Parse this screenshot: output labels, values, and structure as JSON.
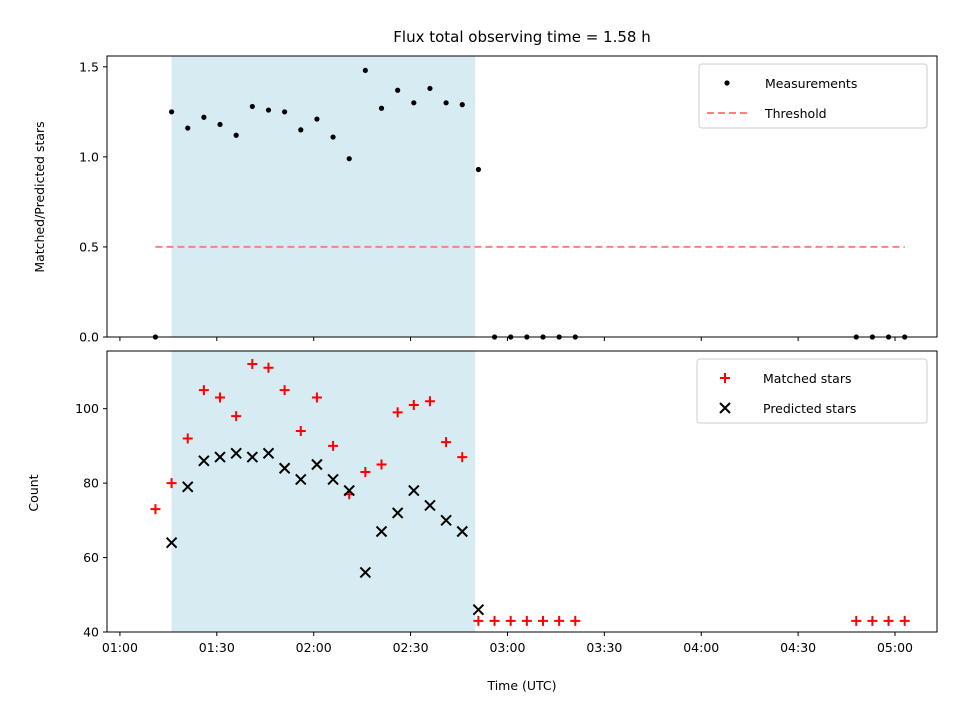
{
  "chart_data": [
    {
      "type": "scatter",
      "title": "Flux total observing time = 1.58 h",
      "xlabel": "",
      "ylabel": "Matched/Predicted stars",
      "ylim": [
        0,
        1.56
      ],
      "xlim": [
        "00:56",
        "05:13"
      ],
      "yticks": [
        "0.0",
        "0.5",
        "1.0",
        "1.5"
      ],
      "shaded_region": {
        "from": "01:16",
        "to": "02:50",
        "color": "#add8e6"
      },
      "legend": {
        "placement": "top-right",
        "entries": [
          "Measurements",
          "Threshold"
        ]
      },
      "series": [
        {
          "name": "Measurements",
          "marker": "dot",
          "color": "#000000",
          "points": [
            [
              "01:11",
              0.0
            ],
            [
              "01:16",
              1.25
            ],
            [
              "01:21",
              1.16
            ],
            [
              "01:26",
              1.22
            ],
            [
              "01:31",
              1.18
            ],
            [
              "01:36",
              1.12
            ],
            [
              "01:41",
              1.28
            ],
            [
              "01:46",
              1.26
            ],
            [
              "01:51",
              1.25
            ],
            [
              "01:56",
              1.15
            ],
            [
              "02:01",
              1.21
            ],
            [
              "02:06",
              1.11
            ],
            [
              "02:11",
              0.99
            ],
            [
              "02:16",
              1.48
            ],
            [
              "02:21",
              1.27
            ],
            [
              "02:26",
              1.37
            ],
            [
              "02:31",
              1.3
            ],
            [
              "02:36",
              1.38
            ],
            [
              "02:41",
              1.3
            ],
            [
              "02:46",
              1.29
            ],
            [
              "02:51",
              0.93
            ],
            [
              "02:56",
              0.0
            ],
            [
              "03:01",
              0.0
            ],
            [
              "03:06",
              0.0
            ],
            [
              "03:11",
              0.0
            ],
            [
              "03:16",
              0.0
            ],
            [
              "03:21",
              0.0
            ],
            [
              "04:48",
              0.0
            ],
            [
              "04:53",
              0.0
            ],
            [
              "04:58",
              0.0
            ],
            [
              "05:03",
              0.0
            ]
          ]
        },
        {
          "name": "Threshold",
          "marker": "dashed-line",
          "color": "#ff7f7f",
          "points": [
            [
              "01:11",
              0.5
            ],
            [
              "05:03",
              0.5
            ]
          ]
        }
      ]
    },
    {
      "type": "scatter",
      "title": "",
      "xlabel": "Time (UTC)",
      "ylabel": "Count",
      "ylim": [
        40,
        115.5
      ],
      "xlim": [
        "00:56",
        "05:13"
      ],
      "yticks": [
        "40",
        "60",
        "80",
        "100"
      ],
      "xticks": [
        "01:00",
        "01:30",
        "02:00",
        "02:30",
        "03:00",
        "03:30",
        "04:00",
        "04:30",
        "05:00"
      ],
      "shaded_region": {
        "from": "01:16",
        "to": "02:50",
        "color": "#add8e6"
      },
      "legend": {
        "placement": "top-right",
        "entries": [
          "Matched stars",
          "Predicted stars"
        ]
      },
      "series": [
        {
          "name": "Matched stars",
          "marker": "plus",
          "color": "#ff0000",
          "points": [
            [
              "01:11",
              73
            ],
            [
              "01:16",
              80
            ],
            [
              "01:21",
              92
            ],
            [
              "01:26",
              105
            ],
            [
              "01:31",
              103
            ],
            [
              "01:36",
              98
            ],
            [
              "01:41",
              112
            ],
            [
              "01:46",
              111
            ],
            [
              "01:51",
              105
            ],
            [
              "01:56",
              94
            ],
            [
              "02:01",
              103
            ],
            [
              "02:06",
              90
            ],
            [
              "02:11",
              77
            ],
            [
              "02:16",
              83
            ],
            [
              "02:21",
              85
            ],
            [
              "02:26",
              99
            ],
            [
              "02:31",
              101
            ],
            [
              "02:36",
              102
            ],
            [
              "02:41",
              91
            ],
            [
              "02:46",
              87
            ],
            [
              "02:51",
              43
            ],
            [
              "02:56",
              43
            ],
            [
              "03:01",
              43
            ],
            [
              "03:06",
              43
            ],
            [
              "03:11",
              43
            ],
            [
              "03:16",
              43
            ],
            [
              "03:21",
              43
            ],
            [
              "04:48",
              43
            ],
            [
              "04:53",
              43
            ],
            [
              "04:58",
              43
            ],
            [
              "05:03",
              43
            ]
          ]
        },
        {
          "name": "Predicted stars",
          "marker": "x",
          "color": "#000000",
          "points": [
            [
              "01:16",
              64
            ],
            [
              "01:21",
              79
            ],
            [
              "01:26",
              86
            ],
            [
              "01:31",
              87
            ],
            [
              "01:36",
              88
            ],
            [
              "01:41",
              87
            ],
            [
              "01:46",
              88
            ],
            [
              "01:51",
              84
            ],
            [
              "01:56",
              81
            ],
            [
              "02:01",
              85
            ],
            [
              "02:06",
              81
            ],
            [
              "02:11",
              78
            ],
            [
              "02:16",
              56
            ],
            [
              "02:21",
              67
            ],
            [
              "02:26",
              72
            ],
            [
              "02:31",
              78
            ],
            [
              "02:36",
              74
            ],
            [
              "02:41",
              70
            ],
            [
              "02:46",
              67
            ],
            [
              "02:51",
              46
            ]
          ]
        }
      ]
    }
  ]
}
